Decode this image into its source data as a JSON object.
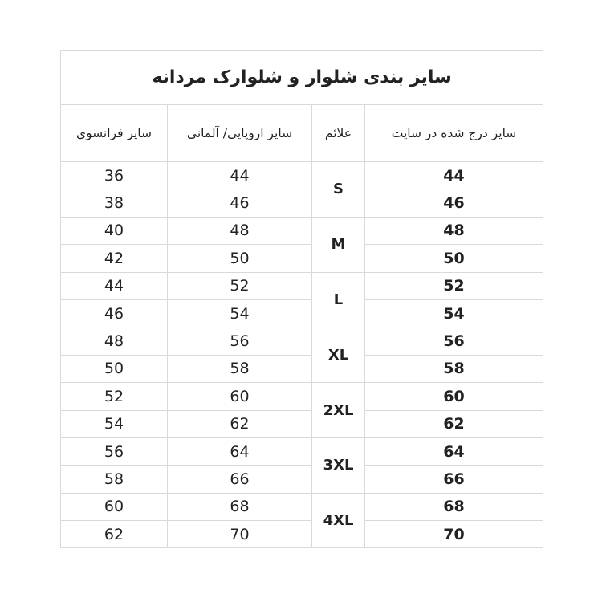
{
  "title": "سایز بندی شلوار و شلوارک مردانه",
  "headers": {
    "french": "سایز فرانسوی",
    "european": "سایز اروپایی/ آلمانی",
    "marks": "علائم",
    "site": "سایز درج شده در سایت"
  },
  "rows": [
    {
      "french": "36",
      "european": "44",
      "site": "44"
    },
    {
      "french": "38",
      "european": "46",
      "site": "46"
    },
    {
      "french": "40",
      "european": "48",
      "site": "48"
    },
    {
      "french": "42",
      "european": "50",
      "site": "50"
    },
    {
      "french": "44",
      "european": "52",
      "site": "52"
    },
    {
      "french": "46",
      "european": "54",
      "site": "54"
    },
    {
      "french": "48",
      "european": "56",
      "site": "56"
    },
    {
      "french": "50",
      "european": "58",
      "site": "58"
    },
    {
      "french": "52",
      "european": "60",
      "site": "60"
    },
    {
      "french": "54",
      "european": "62",
      "site": "62"
    },
    {
      "french": "56",
      "european": "64",
      "site": "64"
    },
    {
      "french": "58",
      "european": "66",
      "site": "66"
    },
    {
      "french": "60",
      "european": "68",
      "site": "68"
    },
    {
      "french": "62",
      "european": "70",
      "site": "70"
    }
  ],
  "marks": [
    "S",
    "M",
    "L",
    "XL",
    "2XL",
    "3XL",
    "4XL"
  ]
}
